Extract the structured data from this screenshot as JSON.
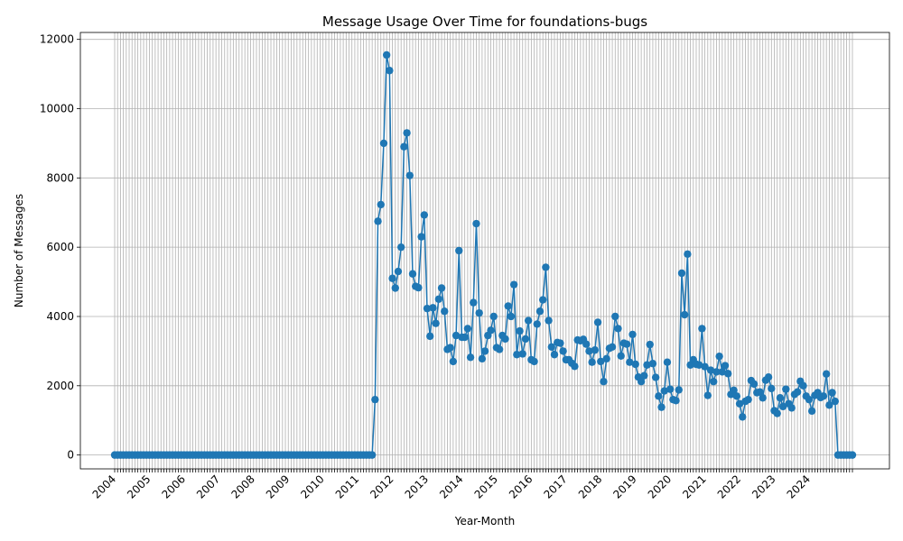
{
  "chart_data": {
    "type": "line",
    "title": "Message Usage Over Time for foundations-bugs",
    "xlabel": "Year-Month",
    "ylabel": "Number of Messages",
    "ylim": [
      -400,
      12200
    ],
    "yticks": [
      0,
      2000,
      4000,
      6000,
      8000,
      10000,
      12000
    ],
    "xtick_labels": [
      "2004",
      "2005",
      "2006",
      "2007",
      "2008",
      "2009",
      "2010",
      "2011",
      "2012",
      "2013",
      "2014",
      "2015",
      "2016",
      "2017",
      "2018",
      "2019",
      "2020",
      "2021",
      "2022",
      "2023",
      "2024"
    ],
    "grid": true,
    "legend": "none",
    "x_start": "2004-01",
    "series": [
      {
        "color": "#1f77b4",
        "values": [
          0,
          0,
          0,
          0,
          0,
          0,
          0,
          0,
          0,
          0,
          0,
          0,
          0,
          0,
          0,
          0,
          0,
          0,
          0,
          0,
          0,
          0,
          0,
          0,
          0,
          0,
          0,
          0,
          0,
          0,
          0,
          0,
          0,
          0,
          0,
          0,
          0,
          0,
          0,
          0,
          0,
          0,
          0,
          0,
          0,
          0,
          0,
          0,
          0,
          0,
          0,
          0,
          0,
          0,
          0,
          0,
          0,
          0,
          0,
          0,
          0,
          0,
          0,
          0,
          0,
          0,
          0,
          0,
          0,
          0,
          0,
          0,
          0,
          0,
          0,
          0,
          0,
          0,
          0,
          0,
          0,
          0,
          0,
          0,
          0,
          0,
          0,
          0,
          0,
          0,
          1600,
          6750,
          7230,
          9000,
          11550,
          11100,
          5100,
          4820,
          5300,
          6000,
          8900,
          9300,
          8070,
          5230,
          4870,
          4830,
          6300,
          6930,
          4230,
          3430,
          4250,
          3800,
          4500,
          4820,
          4150,
          3050,
          3100,
          2700,
          3450,
          5900,
          3400,
          3400,
          3650,
          2820,
          4400,
          6680,
          4100,
          2780,
          3000,
          3450,
          3600,
          4000,
          3100,
          3050,
          3450,
          3350,
          4300,
          4000,
          4920,
          2900,
          3580,
          2920,
          3350,
          3880,
          2750,
          2700,
          3780,
          4150,
          4480,
          5420,
          3880,
          3120,
          2900,
          3250,
          3230,
          3000,
          2750,
          2750,
          2650,
          2560,
          3320,
          3300,
          3340,
          3200,
          3000,
          2680,
          3030,
          3830,
          2700,
          2120,
          2780,
          3080,
          3120,
          4000,
          3650,
          2860,
          3230,
          3200,
          2680,
          3480,
          2620,
          2250,
          2120,
          2290,
          2600,
          3190,
          2640,
          2240,
          1700,
          1380,
          1850,
          2680,
          1900,
          1600,
          1570,
          1880,
          5250,
          4050,
          5800,
          2600,
          2750,
          2620,
          2600,
          3650,
          2550,
          1720,
          2450,
          2120,
          2400,
          2850,
          2400,
          2580,
          2350,
          1750,
          1870,
          1700,
          1480,
          1100,
          1550,
          1600,
          2150,
          2050,
          1800,
          1820,
          1650,
          2160,
          2250,
          1920,
          1280,
          1200,
          1650,
          1400,
          1900,
          1480,
          1360,
          1750,
          1820,
          2130,
          2000,
          1700,
          1600,
          1270,
          1720,
          1800,
          1660,
          1700,
          2340,
          1440,
          1800,
          1550,
          0,
          0,
          0,
          0,
          0,
          0
        ]
      }
    ]
  }
}
